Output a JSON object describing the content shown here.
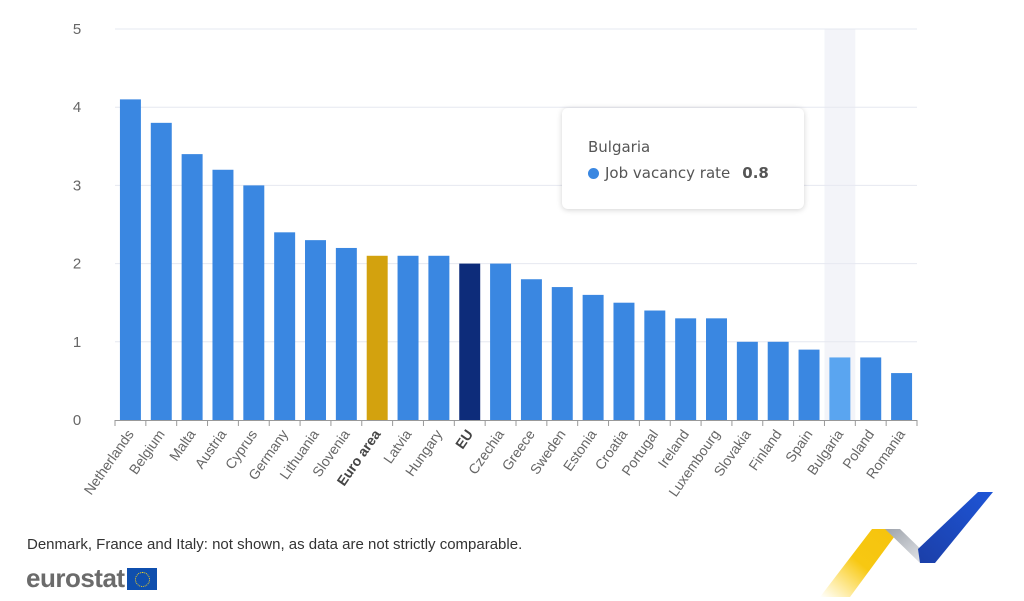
{
  "chart_data": {
    "type": "bar",
    "title": "",
    "xlabel": "",
    "ylabel": "",
    "ylim": [
      0,
      5
    ],
    "yticks": [
      0,
      1,
      2,
      3,
      4,
      5
    ],
    "grid": true,
    "categories": [
      "Netherlands",
      "Belgium",
      "Malta",
      "Austria",
      "Cyprus",
      "Germany",
      "Lithuania",
      "Slovenia",
      "Euro area",
      "Latvia",
      "Hungary",
      "EU",
      "Czechia",
      "Greece",
      "Sweden",
      "Estonia",
      "Croatia",
      "Portugal",
      "Ireland",
      "Luxembourg",
      "Slovakia",
      "Finland",
      "Spain",
      "Bulgaria",
      "Poland",
      "Romania"
    ],
    "series": [
      {
        "name": "Job vacancy rate",
        "values": [
          4.1,
          3.8,
          3.4,
          3.2,
          3.0,
          2.4,
          2.3,
          2.2,
          2.1,
          2.1,
          2.1,
          2.0,
          2.0,
          1.8,
          1.7,
          1.6,
          1.5,
          1.4,
          1.3,
          1.3,
          1.0,
          1.0,
          0.9,
          0.8,
          0.8,
          0.6
        ]
      }
    ],
    "bold_categories": [
      "Euro area",
      "EU"
    ],
    "highlighted_category": "Bulgaria",
    "colors": {
      "default": "#3a87e1",
      "euro_area": "#d3a20e",
      "eu": "#0d2c7a",
      "hovered": "#5aa5f0",
      "hover_band": "#f3f4f9",
      "grid": "#e6e8f0"
    }
  },
  "tooltip": {
    "title": "Bulgaria",
    "series_label": "Job vacancy rate",
    "value": "0.8"
  },
  "footnote": "Denmark, France and Italy: not shown, as data are not strictly comparable.",
  "logo": {
    "text": "eurostat"
  }
}
